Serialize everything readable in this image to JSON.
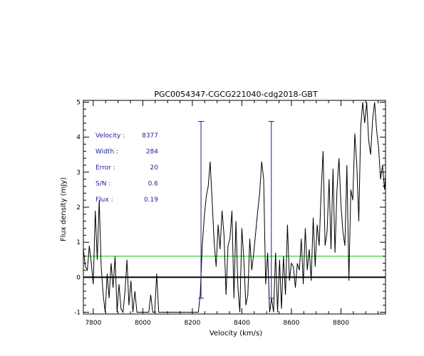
{
  "chart_data": {
    "type": "line",
    "title": "PGC0054347-CGCG221040-cdg2018-GBT",
    "xlabel": "Velocity (km/s)",
    "ylabel": "Flux density (mJy)",
    "xlim": [
      7760,
      8980
    ],
    "ylim": [
      -1.05,
      5.05
    ],
    "x_ticks": [
      7800,
      8000,
      8200,
      8400,
      8600,
      8800
    ],
    "x_tick_labels": [
      "7800",
      "8000",
      "8200",
      "8400",
      "8600",
      "8800"
    ],
    "y_ticks": [
      -1,
      0,
      1,
      2,
      3,
      4,
      5
    ],
    "y_tick_labels": [
      "-1",
      "0",
      "1",
      "2",
      "3",
      "4",
      "5"
    ],
    "grid": false,
    "annotations": [
      {
        "label": "Velocity :",
        "value": "8377"
      },
      {
        "label": "Width :",
        "value": "284"
      },
      {
        "label": "Error :",
        "value": "20"
      },
      {
        "label": "S/N :",
        "value": "0.6"
      },
      {
        "label": "Flux :",
        "value": "0.19"
      }
    ],
    "reference_lines": {
      "zero_level": 0,
      "threshold_level": 0.6,
      "velocity_markers": [
        8235,
        8519
      ],
      "marker_range": [
        -0.6,
        4.45
      ]
    },
    "colors": {
      "spectrum": "#000000",
      "threshold": "#00cc00",
      "markers": "#1a1aa8",
      "annotation_text": "#2020a0"
    },
    "series": [
      {
        "x": [
          7760,
          7768,
          7776,
          7784,
          7792,
          7800,
          7808,
          7816,
          7824,
          7832,
          7840,
          7848,
          7856,
          7864,
          7872,
          7880,
          7888,
          7896,
          7904,
          7912,
          7920,
          7928,
          7936,
          7944,
          7952,
          7960,
          7968,
          7976,
          7984,
          7992,
          8000,
          8008,
          8016,
          8024,
          8032,
          8040,
          8048,
          8056,
          8064,
          8072,
          8080,
          8088,
          8096,
          8104,
          8112,
          8120,
          8128,
          8136,
          8144,
          8152,
          8160,
          8168,
          8176,
          8184,
          8192,
          8200,
          8208,
          8216,
          8224,
          8232,
          8240,
          8248,
          8256,
          8264,
          8272,
          8280,
          8288,
          8296,
          8304,
          8312,
          8320,
          8328,
          8336,
          8344,
          8352,
          8360,
          8368,
          8376,
          8384,
          8392,
          8400,
          8408,
          8416,
          8424,
          8432,
          8440,
          8448,
          8456,
          8464,
          8472,
          8480,
          8488,
          8496,
          8504,
          8512,
          8520,
          8528,
          8536,
          8544,
          8552,
          8560,
          8568,
          8576,
          8584,
          8592,
          8600,
          8608,
          8616,
          8624,
          8632,
          8640,
          8648,
          8656,
          8664,
          8672,
          8680,
          8688,
          8696,
          8704,
          8712,
          8720,
          8728,
          8736,
          8744,
          8752,
          8760,
          8768,
          8776,
          8784,
          8792,
          8800,
          8808,
          8816,
          8824,
          8832,
          8840,
          8848,
          8856,
          8864,
          8872,
          8880,
          8888,
          8896,
          8904,
          8912,
          8920,
          8928,
          8936,
          8944,
          8952,
          8960,
          8968,
          8976,
          8980
        ],
        "values": [
          0.8,
          0.3,
          0.2,
          0.9,
          0.4,
          -0.2,
          1.9,
          0.5,
          2.2,
          0.3,
          -0.5,
          -1.0,
          0.1,
          -0.6,
          0.4,
          -0.3,
          0.6,
          -1.0,
          -0.2,
          -0.9,
          -1.0,
          -0.4,
          0.5,
          -0.8,
          -0.1,
          -1.0,
          -0.4,
          -1.0,
          -1.0,
          -1.0,
          -1.0,
          -1.0,
          -1.0,
          -1.0,
          -0.5,
          -1.0,
          -1.0,
          0.1,
          -1.0,
          -1.0,
          -1.0,
          -1.0,
          -1.0,
          -1.0,
          -1.0,
          -1.0,
          -1.0,
          -1.0,
          -1.0,
          -1.0,
          -1.0,
          -1.0,
          -1.0,
          -1.0,
          -1.0,
          -1.0,
          -1.0,
          -1.0,
          -1.0,
          -0.5,
          0.9,
          1.7,
          2.3,
          2.6,
          3.3,
          2.2,
          1.0,
          0.3,
          1.5,
          0.8,
          1.9,
          1.2,
          -0.5,
          0.9,
          1.1,
          1.9,
          -0.6,
          1.6,
          -0.3,
          -1.0,
          1.4,
          0.5,
          -0.8,
          -0.5,
          1.1,
          0.2,
          0.7,
          1.3,
          1.9,
          2.4,
          3.3,
          2.8,
          -0.2,
          0.7,
          -1.0,
          -0.6,
          -1.0,
          0.7,
          -1.0,
          0.5,
          -0.9,
          0.6,
          -0.5,
          1.5,
          -0.1,
          0.4,
          0.3,
          -0.3,
          0.4,
          0.2,
          1.1,
          -0.2,
          1.4,
          0.2,
          0.8,
          -0.1,
          1.7,
          0.3,
          1.5,
          0.9,
          2.4,
          3.6,
          0.9,
          1.3,
          2.8,
          0.8,
          3.1,
          0.7,
          2.5,
          3.4,
          2.1,
          1.3,
          0.9,
          3.2,
          -0.1,
          2.5,
          2.2,
          4.1,
          3.2,
          1.6,
          4.3,
          5.0,
          4.4,
          5.0,
          3.9,
          3.5,
          4.5,
          5.0,
          4.2,
          3.7,
          2.8,
          3.2,
          2.5,
          2.9
        ]
      }
    ]
  }
}
